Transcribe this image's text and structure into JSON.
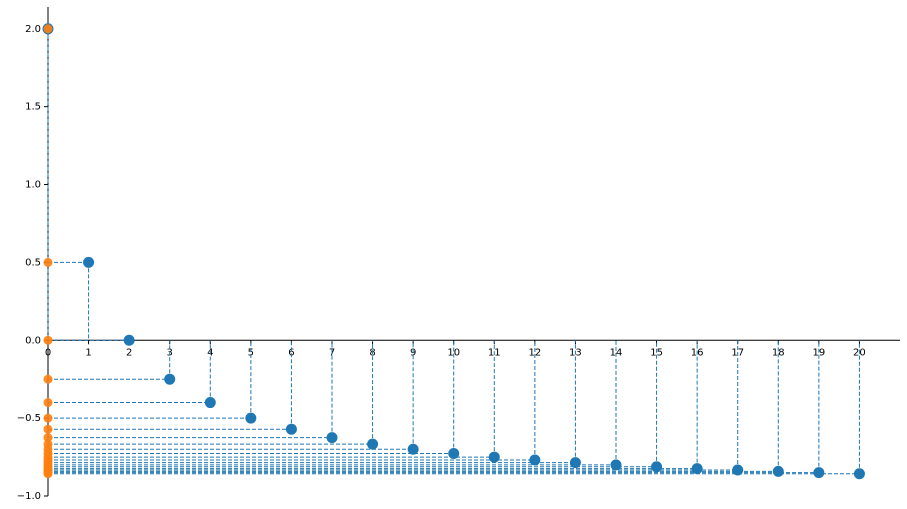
{
  "chart_data": {
    "type": "stem-projection",
    "x": [
      0,
      1,
      2,
      3,
      4,
      5,
      6,
      7,
      8,
      9,
      10,
      11,
      12,
      13,
      14,
      15,
      16,
      17,
      18,
      19,
      20
    ],
    "values": [
      2.0,
      0.5,
      0.0,
      -0.25,
      -0.4,
      -0.5,
      -0.571,
      -0.625,
      -0.667,
      -0.7,
      -0.727,
      -0.75,
      -0.769,
      -0.786,
      -0.8,
      -0.8125,
      -0.824,
      -0.833,
      -0.842,
      -0.85,
      -0.857
    ],
    "color": "#1f77b4",
    "projection_color": "#ff7f0e",
    "xlim": [
      0,
      21
    ],
    "ylim": [
      -1.0,
      2.14
    ],
    "xticks": [
      0,
      1,
      2,
      3,
      4,
      5,
      6,
      7,
      8,
      9,
      10,
      11,
      12,
      13,
      14,
      15,
      16,
      17,
      18,
      19,
      20
    ],
    "yticks": [
      {
        "value": -1.0,
        "label": "−1.0"
      },
      {
        "value": -0.5,
        "label": "−0.5"
      },
      {
        "value": 0,
        "label": "0.0"
      },
      {
        "value": 0.5,
        "label": "0.5"
      },
      {
        "value": 1.0,
        "label": "1.0"
      },
      {
        "value": 1.5,
        "label": "1.5"
      },
      {
        "value": 2.0,
        "label": "2.0"
      }
    ],
    "grid": false
  }
}
